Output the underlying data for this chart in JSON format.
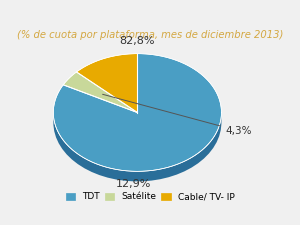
{
  "title": "(% de cuota por plataforma, mes de diciembre 2013)",
  "title_color": "#d4a843",
  "title_fontsize": 7.2,
  "slices": [
    82.8,
    4.3,
    12.9
  ],
  "labels": [
    "82,8%",
    "4,3%",
    "12,9%"
  ],
  "slice_colors": [
    "#4a9ec4",
    "#c8d89a",
    "#e8aa00"
  ],
  "slice_dark_colors": [
    "#2a6e99",
    "#8aaa50",
    "#b07800"
  ],
  "legend_labels": [
    "TDT",
    "Satélite",
    "Cable/ TV- IP"
  ],
  "legend_colors": [
    "#4a9ec4",
    "#c8d89a",
    "#e8aa00"
  ],
  "startangle": 90,
  "depth": 0.12,
  "bg_color": "#f0f0f0"
}
